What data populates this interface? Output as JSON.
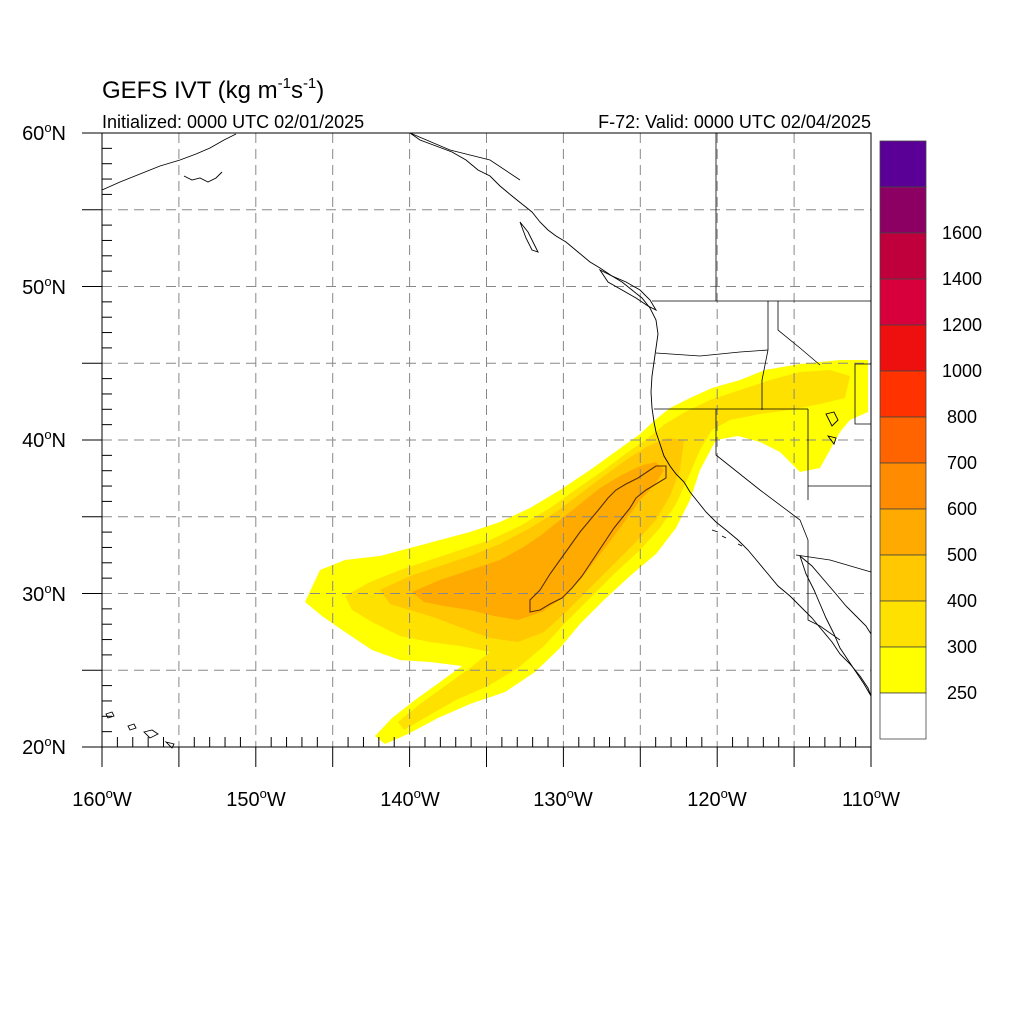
{
  "title": {
    "main": "GEFS IVT (kg m",
    "sup1": "-1",
    "mid": "s",
    "sup2": "-1",
    "end": ")"
  },
  "subtitle_left": "Initialized: 0000 UTC 02/01/2025",
  "subtitle_right": "F-72: Valid: 0000 UTC 02/04/2025",
  "lat_labels": [
    {
      "num": "60",
      "deg": "o",
      "hem": "N",
      "value": 60
    },
    {
      "num": "50",
      "deg": "o",
      "hem": "N",
      "value": 50
    },
    {
      "num": "40",
      "deg": "o",
      "hem": "N",
      "value": 40
    },
    {
      "num": "30",
      "deg": "o",
      "hem": "N",
      "value": 30
    },
    {
      "num": "20",
      "deg": "o",
      "hem": "N",
      "value": 20
    }
  ],
  "lon_labels": [
    {
      "num": "160",
      "deg": "o",
      "hem": "W",
      "value": -160
    },
    {
      "num": "150",
      "deg": "o",
      "hem": "W",
      "value": -150
    },
    {
      "num": "140",
      "deg": "o",
      "hem": "W",
      "value": -140
    },
    {
      "num": "130",
      "deg": "o",
      "hem": "W",
      "value": -130
    },
    {
      "num": "120",
      "deg": "o",
      "hem": "W",
      "value": -120
    },
    {
      "num": "110",
      "deg": "o",
      "hem": "W",
      "value": -110
    }
  ],
  "map_extent": {
    "lon_min": -160,
    "lon_max": -110,
    "lat_min": 20,
    "lat_max": 60
  },
  "colorbar": {
    "labels": [
      "250",
      "300",
      "400",
      "500",
      "600",
      "700",
      "800",
      "1000",
      "1200",
      "1400",
      "1600"
    ],
    "colors": [
      "#ffffff",
      "#ffff00",
      "#ffe100",
      "#ffc800",
      "#ffaa00",
      "#ff8c00",
      "#ff6400",
      "#ff3200",
      "#ee0f0f",
      "#d7003c",
      "#c0003c",
      "#8c0064",
      "#5a0096"
    ]
  },
  "ivt_levels": [
    {
      "value": 250,
      "color": "#ffff00"
    },
    {
      "value": 300,
      "color": "#ffe100"
    },
    {
      "value": 400,
      "color": "#ffc800"
    },
    {
      "value": 500,
      "color": "#ffaa00"
    }
  ]
}
